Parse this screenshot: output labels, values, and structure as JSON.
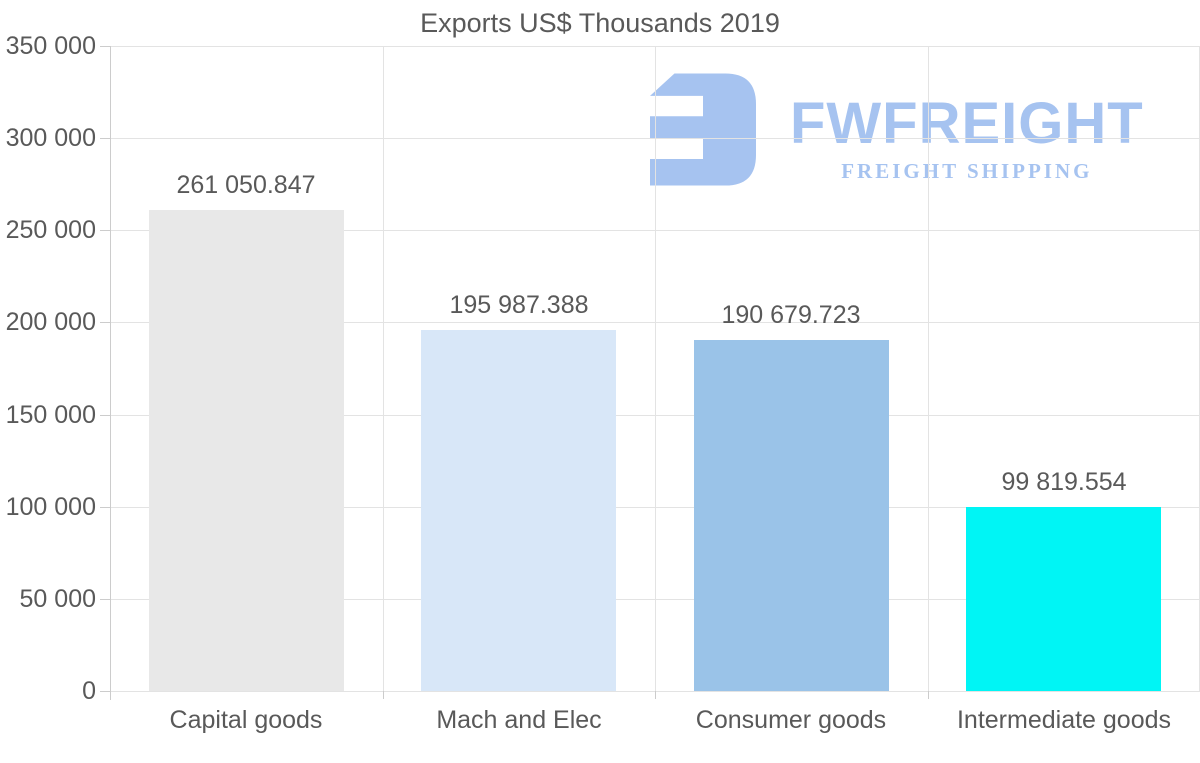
{
  "chart_data": {
    "type": "bar",
    "title": "Exports US$ Thousands 2019",
    "categories": [
      "Capital goods",
      "Mach and Elec",
      "Consumer goods",
      "Intermediate goods"
    ],
    "values": [
      261050.847,
      195987.388,
      190679.723,
      99819.554
    ],
    "value_labels": [
      "261 050.847",
      "195 987.388",
      "190 679.723",
      "99 819.554"
    ],
    "bar_colors": [
      "#e8e8e8",
      "#d8e7f8",
      "#9ac3e8",
      "#00f5f5"
    ],
    "xlabel": "",
    "ylabel": "",
    "ylim": [
      0,
      350000
    ],
    "ytick_values": [
      0,
      50000,
      100000,
      150000,
      200000,
      250000,
      300000,
      350000
    ],
    "ytick_labels": [
      "0",
      "50 000",
      "100 000",
      "150 000",
      "200 000",
      "250 000",
      "300 000",
      "350 000"
    ],
    "grid": true,
    "legend": "none"
  },
  "logo": {
    "wordmark": "FWFREIGHT",
    "tagline": "FREIGHT SHIPPING",
    "color": "#a6c3f0"
  },
  "colors": {
    "text": "#595959",
    "grid": "#e3e3e3",
    "axis": "#cccccc",
    "background": "#ffffff"
  }
}
